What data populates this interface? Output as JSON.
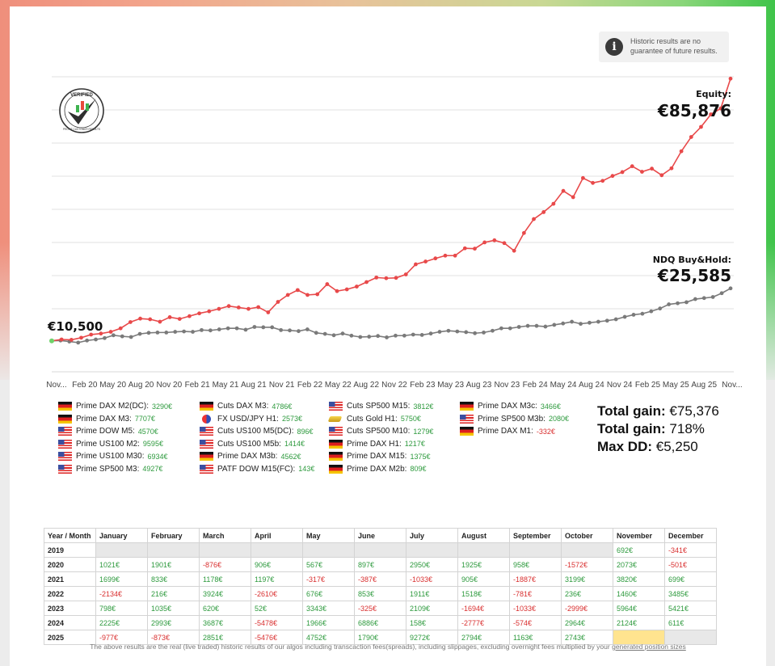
{
  "disclaimer": "Historic results are no guarantee of future results.",
  "info_icon": "info-icon",
  "badge": {
    "top": "VERIFIED",
    "ring": "PROFIT CUSTOMER RESULTS"
  },
  "chart_data": {
    "type": "line",
    "x_ticks": [
      "Nov...",
      "Feb 20",
      "May 20",
      "Aug 20",
      "Nov 20",
      "Feb 21",
      "May 21",
      "Aug 21",
      "Nov 21",
      "Feb 22",
      "May 22",
      "Aug 22",
      "Nov 22",
      "Feb 23",
      "May 23",
      "Aug 23",
      "Nov 23",
      "Feb 24",
      "May 24",
      "Aug 24",
      "Nov 24",
      "Feb 25",
      "May 25",
      "Aug 25",
      "Nov..."
    ],
    "ylim": [
      3000,
      95000
    ],
    "grid": true,
    "series": [
      {
        "name": "Equity",
        "color": "#e8494a",
        "values": [
          10500,
          10900,
          10800,
          11400,
          12300,
          12600,
          13100,
          14100,
          15900,
          16900,
          16700,
          16000,
          17300,
          16800,
          17600,
          18400,
          19000,
          19700,
          20500,
          20100,
          19700,
          20200,
          18700,
          21700,
          23700,
          25100,
          23700,
          23900,
          26800,
          24800,
          25300,
          26100,
          27400,
          28700,
          28500,
          28600,
          29600,
          32500,
          33300,
          34200,
          35000,
          35000,
          37100,
          37000,
          38800,
          39400,
          38600,
          36400,
          41500,
          45500,
          47500,
          49900,
          53600,
          51800,
          57300,
          55900,
          56500,
          57900,
          59000,
          60700,
          59100,
          60000,
          58100,
          60100,
          65000,
          69100,
          72000,
          75600,
          77300,
          85876
        ]
      },
      {
        "name": "NDQ Buy&Hold",
        "color": "#7a7a7a",
        "values": [
          10500,
          10600,
          10300,
          10000,
          10600,
          10900,
          11300,
          12100,
          11800,
          11600,
          12500,
          12800,
          12900,
          12900,
          13100,
          13200,
          13100,
          13600,
          13500,
          13800,
          14100,
          14100,
          13700,
          14500,
          14400,
          14400,
          13600,
          13500,
          13300,
          13800,
          12800,
          12500,
          12100,
          12600,
          12000,
          11600,
          11700,
          11900,
          11500,
          12000,
          12000,
          12300,
          12200,
          12600,
          13100,
          13400,
          13200,
          13000,
          12700,
          12900,
          13400,
          14100,
          14100,
          14500,
          14800,
          14800,
          14600,
          15100,
          15500,
          16000,
          15400,
          15700,
          16000,
          16300,
          16700,
          17400,
          18000,
          18300,
          19000,
          19800,
          21000,
          21300,
          21600,
          22500,
          22800,
          23100,
          24200,
          25585
        ]
      }
    ]
  },
  "labels": {
    "start_value": "€10,500",
    "equity_title": "Equity:",
    "equity_value": "€85,876",
    "bh_title": "NDQ Buy&Hold:",
    "bh_value": "€25,585"
  },
  "legend": [
    [
      {
        "flag": "de",
        "name": "Prime DAX M2(DC):",
        "value": "3290€",
        "sign": "pos"
      },
      {
        "flag": "de",
        "name": "Prime DAX M3:",
        "value": "7707€",
        "sign": "pos"
      },
      {
        "flag": "us",
        "name": "Prime DOW M5:",
        "value": "4570€",
        "sign": "pos"
      },
      {
        "flag": "us",
        "name": "Prime US100 M2:",
        "value": "9595€",
        "sign": "pos"
      },
      {
        "flag": "us",
        "name": "Prime US100 M30:",
        "value": "6934€",
        "sign": "pos"
      },
      {
        "flag": "us",
        "name": "Prime SP500 M3:",
        "value": "4927€",
        "sign": "pos"
      }
    ],
    [
      {
        "flag": "de",
        "name": "Cuts DAX M3:",
        "value": "4786€",
        "sign": "pos"
      },
      {
        "flag": "fx",
        "name": "FX USD/JPY H1:",
        "value": "2573€",
        "sign": "pos"
      },
      {
        "flag": "us",
        "name": "Cuts US100 M5(DC):",
        "value": "896€",
        "sign": "pos"
      },
      {
        "flag": "us",
        "name": "Cuts US100 M5b:",
        "value": "1414€",
        "sign": "pos"
      },
      {
        "flag": "de",
        "name": "Prime DAX M3b:",
        "value": "4562€",
        "sign": "pos"
      },
      {
        "flag": "us",
        "name": "PATF DOW M15(FC):",
        "value": "143€",
        "sign": "pos"
      }
    ],
    [
      {
        "flag": "us",
        "name": "Cuts SP500 M15:",
        "value": "3812€",
        "sign": "pos"
      },
      {
        "flag": "gold",
        "name": "Cuts Gold H1:",
        "value": "5750€",
        "sign": "pos"
      },
      {
        "flag": "us",
        "name": "Cuts SP500 M10:",
        "value": "1279€",
        "sign": "pos"
      },
      {
        "flag": "de",
        "name": "Prime DAX H1:",
        "value": "1217€",
        "sign": "pos"
      },
      {
        "flag": "de",
        "name": "Prime DAX M15:",
        "value": "1375€",
        "sign": "pos"
      },
      {
        "flag": "de",
        "name": "Prime DAX M2b:",
        "value": "809€",
        "sign": "pos"
      }
    ],
    [
      {
        "flag": "de",
        "name": "Prime DAX M3c:",
        "value": "3466€",
        "sign": "pos"
      },
      {
        "flag": "us",
        "name": "Prime SP500 M3b:",
        "value": "2080€",
        "sign": "pos"
      },
      {
        "flag": "de",
        "name": "Prime DAX M1:",
        "value": "-332€",
        "sign": "neg"
      }
    ]
  ],
  "totals": [
    {
      "label": "Total gain:",
      "value": "€75,376"
    },
    {
      "label": "Total gain:",
      "value": "718%"
    },
    {
      "label": "Max DD:",
      "value": "€5,250"
    }
  ],
  "table": {
    "headers": [
      "Year / Month",
      "January",
      "February",
      "March",
      "April",
      "May",
      "June",
      "July",
      "August",
      "September",
      "October",
      "November",
      "December"
    ],
    "rows": [
      [
        "2019",
        "",
        "",
        "",
        "",
        "",
        "",
        "",
        "",
        "",
        "",
        "692€",
        "-341€"
      ],
      [
        "2020",
        "1021€",
        "1901€",
        "-876€",
        "906€",
        "567€",
        "897€",
        "2950€",
        "1925€",
        "958€",
        "-1572€",
        "2073€",
        "-501€"
      ],
      [
        "2021",
        "1699€",
        "833€",
        "1178€",
        "1197€",
        "-317€",
        "-387€",
        "-1033€",
        "905€",
        "-1887€",
        "3199€",
        "3820€",
        "699€"
      ],
      [
        "2022",
        "-2134€",
        "216€",
        "3924€",
        "-2610€",
        "676€",
        "853€",
        "1911€",
        "1518€",
        "-781€",
        "236€",
        "1460€",
        "3485€"
      ],
      [
        "2023",
        "798€",
        "1035€",
        "620€",
        "52€",
        "3343€",
        "-325€",
        "2109€",
        "-1694€",
        "-1033€",
        "-2999€",
        "5964€",
        "5421€"
      ],
      [
        "2024",
        "2225€",
        "2993€",
        "3687€",
        "-5478€",
        "1966€",
        "6886€",
        "158€",
        "-2777€",
        "-574€",
        "2964€",
        "2124€",
        "611€"
      ],
      [
        "2025",
        "-977€",
        "-873€",
        "2851€",
        "-5476€",
        "4752€",
        "1790€",
        "9272€",
        "2794€",
        "1163€",
        "2743€",
        "",
        ""
      ]
    ]
  },
  "footer": {
    "text": "The above results are the real (live traded) historic results of our algos including transcaction fees(spreads), including slippages, excluding overnight fees multiplied by your ",
    "link": "generated position sizes"
  }
}
